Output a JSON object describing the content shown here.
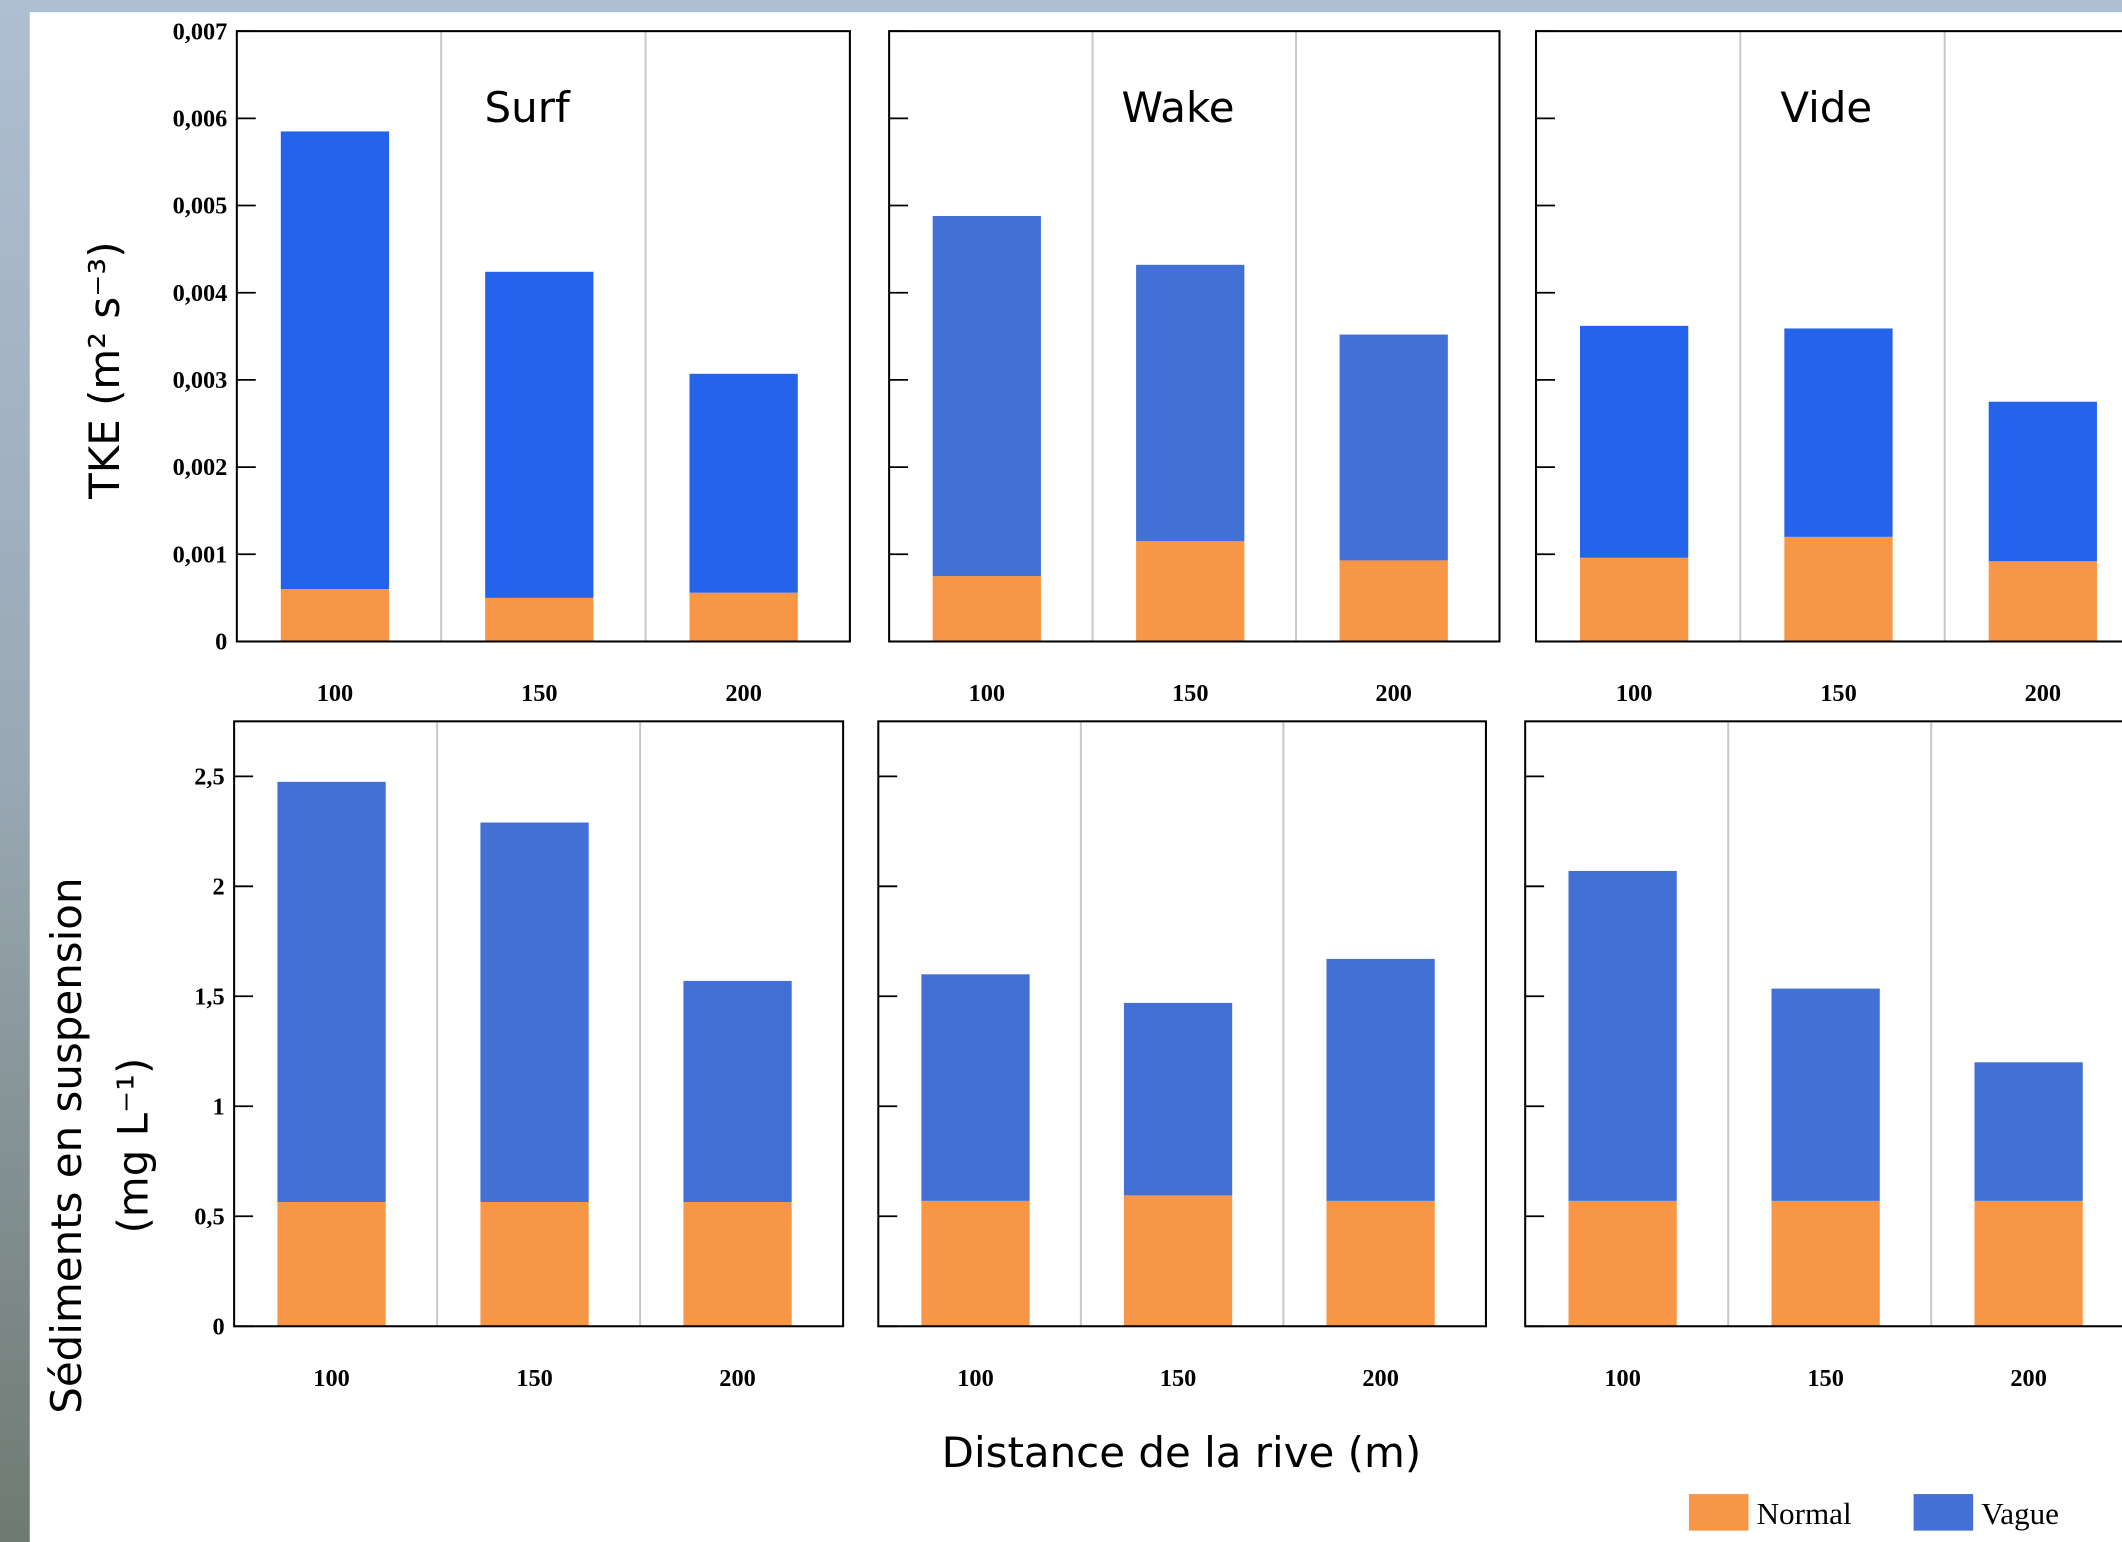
{
  "chart_data": [
    {
      "type": "bar",
      "stacked": true,
      "title": "Surf",
      "ylabel": "TKE (m² s⁻³)",
      "categories": [
        "100",
        "150",
        "200"
      ],
      "series": [
        {
          "color": "#f79646",
          "values": [
            0.0006,
            0.0005,
            0.00056
          ]
        },
        {
          "color": "#2563eb",
          "values": [
            0.00525,
            0.00374,
            0.00251
          ]
        }
      ],
      "ylim": [
        0,
        0.007
      ],
      "yticks": [
        0,
        {
          "value": 0.001,
          "label": "0,001"
        },
        {
          "value": 0.002,
          "label": "0,002"
        },
        {
          "value": 0.003,
          "label": "0,003"
        },
        {
          "value": 0.004,
          "label": "0,004"
        },
        {
          "value": 0.005,
          "label": "0,005"
        },
        {
          "value": 0.006,
          "label": "0,006"
        },
        {
          "value": 0.007,
          "label": "0,007"
        }
      ]
    },
    {
      "type": "bar",
      "stacked": true,
      "title": "Wake",
      "categories": [
        "100",
        "150",
        "200"
      ],
      "series": [
        {
          "color": "#f79646",
          "values": [
            0.00075,
            0.00115,
            0.00093
          ]
        },
        {
          "color": "#4270d4",
          "values": [
            0.00413,
            0.00317,
            0.00259
          ]
        }
      ],
      "ylim": [
        0,
        0.007
      ]
    },
    {
      "type": "bar",
      "stacked": true,
      "title": "Vide",
      "categories": [
        "100",
        "150",
        "200"
      ],
      "series": [
        {
          "color": "#f79646",
          "values": [
            0.00096,
            0.0012,
            0.00092
          ]
        },
        {
          "color": "#2563eb",
          "values": [
            0.00266,
            0.00239,
            0.00183
          ]
        }
      ],
      "ylim": [
        0,
        0.007
      ]
    },
    {
      "type": "bar",
      "stacked": true,
      "ylabel": [
        "Sédiments en suspension",
        "(mg L⁻¹)"
      ],
      "categories": [
        "100",
        "150",
        "200"
      ],
      "series": [
        {
          "color": "#f79646",
          "values": [
            0.565,
            0.565,
            0.565
          ]
        },
        {
          "color": "#4270d4",
          "values": [
            1.91,
            1.725,
            1.005
          ]
        }
      ],
      "ylim": [
        0,
        2.75
      ],
      "yticks": [
        0,
        {
          "value": 0.5,
          "label": "0,5"
        },
        1,
        {
          "value": 1.5,
          "label": "1,5"
        },
        2,
        {
          "value": 2.5,
          "label": "2,5"
        }
      ]
    },
    {
      "type": "bar",
      "stacked": true,
      "xlabel": "Distance de la rive (m)",
      "categories": [
        "100",
        "150",
        "200"
      ],
      "series": [
        {
          "color": "#f79646",
          "values": [
            0.57,
            0.595,
            0.57
          ]
        },
        {
          "color": "#4270d4",
          "values": [
            1.03,
            0.875,
            1.1
          ]
        }
      ],
      "ylim": [
        0,
        2.75
      ]
    },
    {
      "type": "bar",
      "stacked": true,
      "categories": [
        "100",
        "150",
        "200"
      ],
      "series": [
        {
          "name": "Normal",
          "color": "#f79646",
          "values": [
            0.57,
            0.57,
            0.57
          ]
        },
        {
          "name": "Vague",
          "color": "#4270d4",
          "values": [
            1.5,
            0.965,
            0.63
          ]
        }
      ],
      "ylim": [
        0,
        2.75
      ]
    }
  ]
}
